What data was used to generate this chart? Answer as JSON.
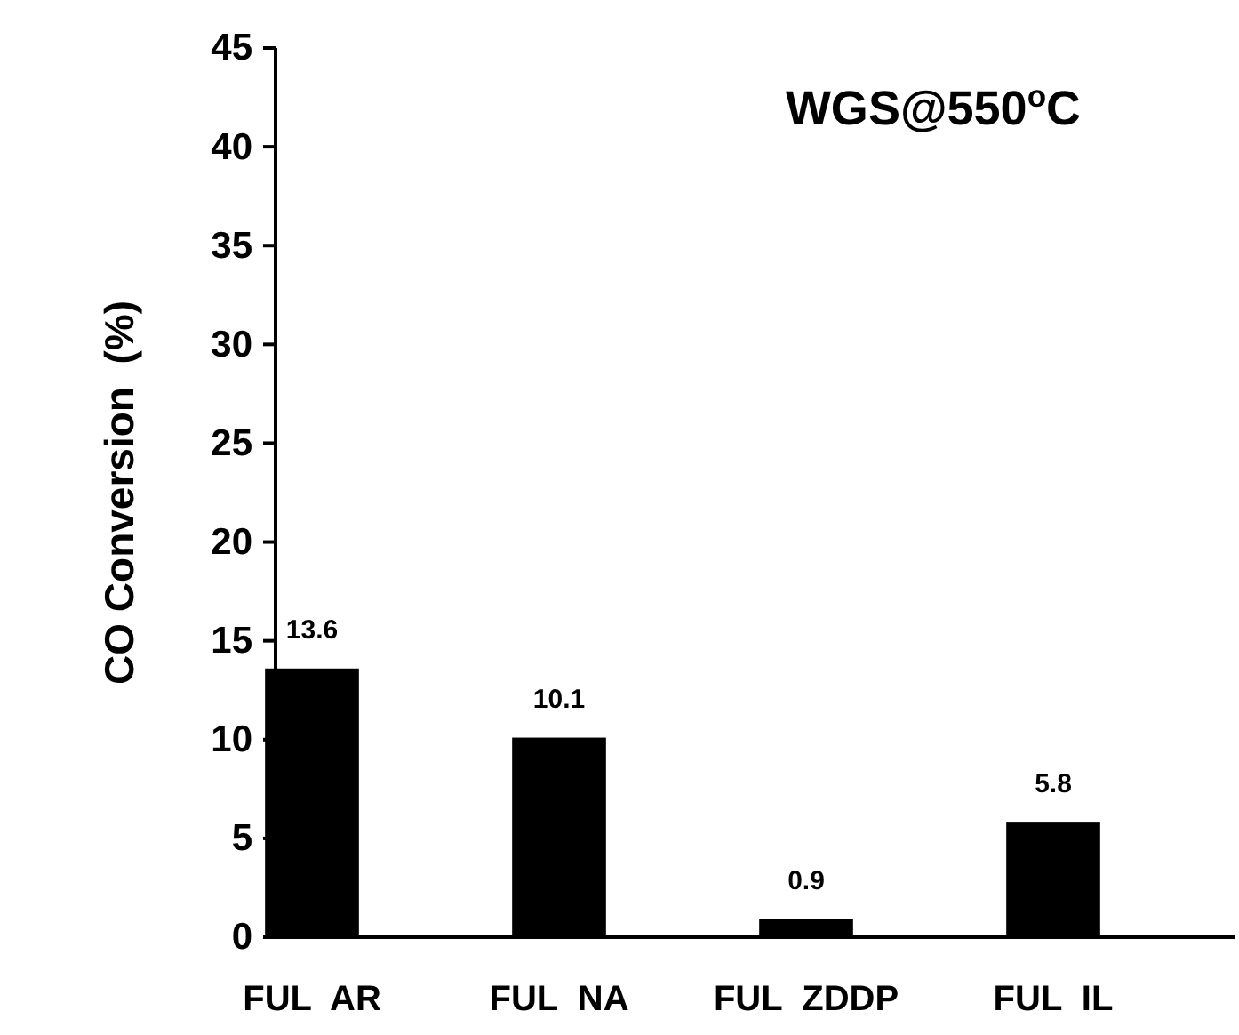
{
  "chart_data": {
    "type": "bar",
    "title": "WGS@550$^{o}$C",
    "ylabel": "CO Conversion  (%)",
    "categories": [
      "FUL  AR",
      "FUL  NA",
      "FUL  ZDDP",
      "FUL  IL"
    ],
    "values": [
      13.6,
      10.1,
      0.9,
      5.8
    ],
    "color": "#000000",
    "ylim": [
      0,
      45
    ],
    "yticks": [
      0,
      5,
      10,
      15,
      20,
      25,
      30,
      35,
      40,
      45
    ],
    "grid": false,
    "data_labels": true
  }
}
